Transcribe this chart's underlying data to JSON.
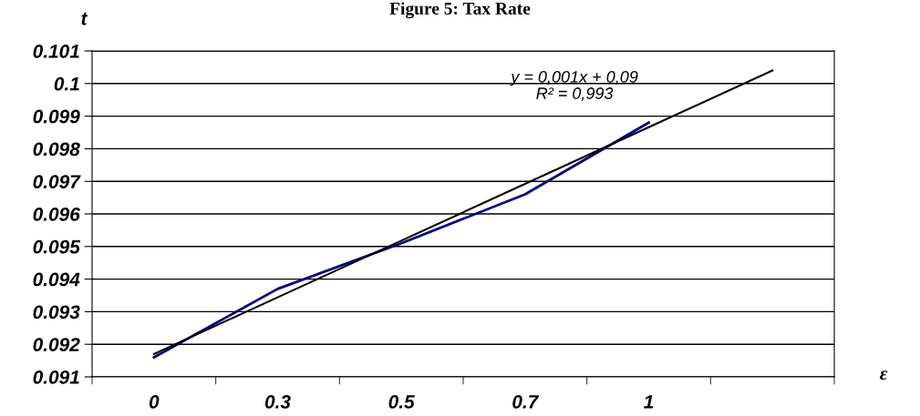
{
  "chart_data": {
    "type": "line",
    "title": "Figure 5: Tax Rate",
    "ylabel": "t",
    "xlabel": "ε",
    "categories": [
      "0",
      "0.3",
      "0.5",
      "0.7",
      "1",
      null
    ],
    "series": [
      {
        "color": "#000080",
        "values": [
          0.0916,
          0.0937,
          0.0951,
          0.0966,
          0.0988,
          null
        ]
      },
      {
        "color": "#000000",
        "values": [
          0.0917,
          0.09344,
          0.09518,
          0.09692,
          0.09866,
          0.1004
        ]
      }
    ],
    "ylim": [
      0.091,
      0.101
    ],
    "yticks": [
      0.091,
      0.092,
      0.093,
      0.094,
      0.095,
      0.096,
      0.097,
      0.098,
      0.099,
      0.1,
      0.101
    ],
    "grid": "y",
    "legend": false,
    "annotations": [
      "y = 0,001x + 0,09\nR² = 0,993"
    ]
  }
}
